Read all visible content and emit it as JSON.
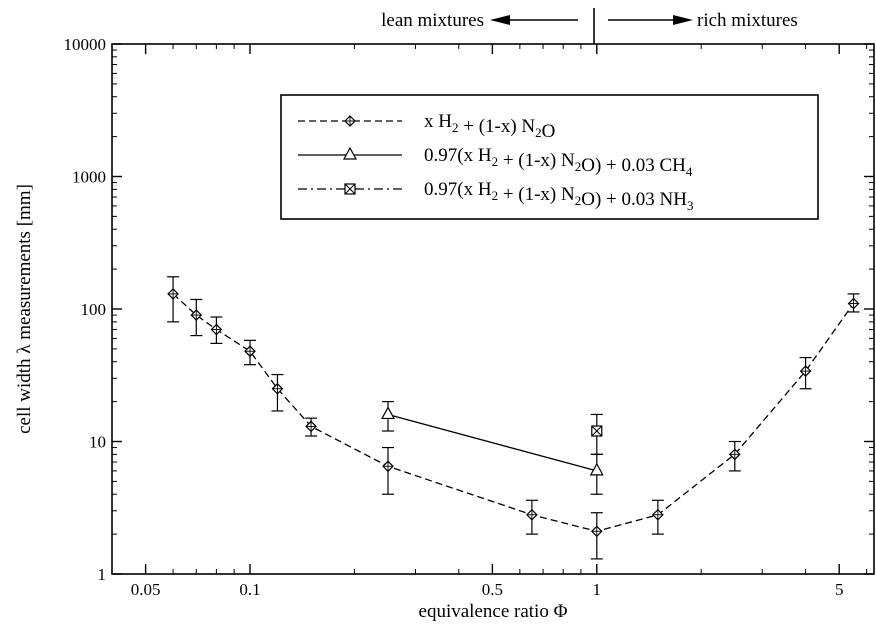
{
  "chart_data": {
    "type": "line",
    "xlabel": "equivalence ratio",
    "xlabel_symbol": "Φ",
    "ylabel_pre": "cell width",
    "ylabel_symbol": "λ",
    "ylabel_post": "measurements  [mm]",
    "x_scale": "log",
    "y_scale": "log",
    "xlim": [
      0.04,
      6.3
    ],
    "ylim": [
      1,
      10000
    ],
    "x_ticks": [
      0.05,
      0.1,
      0.5,
      1,
      5
    ],
    "x_tick_labels": [
      "0.05",
      "0.1",
      "0.5",
      "1",
      "5"
    ],
    "y_ticks": [
      1,
      10,
      100,
      1000,
      10000
    ],
    "y_tick_labels": [
      "1",
      "10",
      "100",
      "1000",
      "10000"
    ],
    "grid": false,
    "legend_position": "upper-right",
    "annotations": {
      "lean": "lean mixtures",
      "rich": "rich mixtures",
      "divider_x": 1
    },
    "series": [
      {
        "name": "x H2 + (1-x) N2O",
        "legend": {
          "a": "x H",
          "s1": "2",
          "b": " + (1-x) N",
          "s2": "2",
          "c": "O",
          "s3": "",
          "d": ""
        },
        "marker": "diamond",
        "linestyle": "dashed",
        "x": [
          0.06,
          0.07,
          0.08,
          0.1,
          0.12,
          0.15,
          0.25,
          0.65,
          1.0,
          1.5,
          2.5,
          4.0,
          5.5
        ],
        "y": [
          130,
          90,
          70,
          48,
          25,
          13,
          6.5,
          2.8,
          2.1,
          2.8,
          8,
          34,
          110
        ],
        "ylow": [
          80,
          63,
          55,
          38,
          17,
          11,
          4,
          2.0,
          1.3,
          2.0,
          6,
          25,
          95
        ],
        "yhigh": [
          175,
          118,
          87,
          58,
          32,
          15,
          9,
          3.6,
          2.9,
          3.6,
          10,
          43,
          130
        ]
      },
      {
        "name": "0.97(x H2 + (1-x) N2O) + 0.03 CH4",
        "legend": {
          "a": "0.97(x H",
          "s1": "2",
          "b": " + (1-x) N",
          "s2": "2",
          "c": "O) + 0.03 CH",
          "s3": "4",
          "d": ""
        },
        "marker": "triangle",
        "linestyle": "solid",
        "x": [
          0.25,
          1.0
        ],
        "y": [
          16,
          6
        ],
        "ylow": [
          12,
          4
        ],
        "yhigh": [
          20,
          8
        ]
      },
      {
        "name": "0.97(x H2 + (1-x) N2O) + 0.03 NH3",
        "legend": {
          "a": "0.97(x H",
          "s1": "2",
          "b": " + (1-x) N",
          "s2": "2",
          "c": "O) + 0.03 NH",
          "s3": "3",
          "d": ""
        },
        "marker": "boxed-x",
        "linestyle": "dash-dot",
        "x": [
          1.0
        ],
        "y": [
          12
        ],
        "ylow": [
          8
        ],
        "yhigh": [
          16
        ]
      }
    ]
  }
}
